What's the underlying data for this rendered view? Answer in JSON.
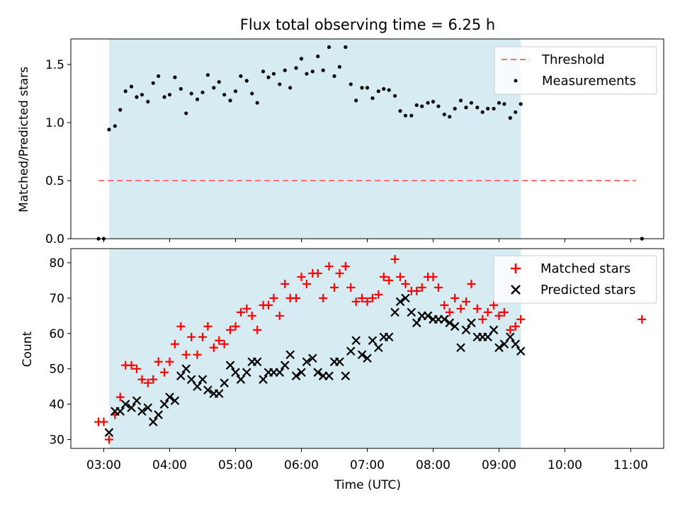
{
  "title": "Flux total observing time = 6.25 h",
  "xlabel": "Time (UTC)",
  "colors": {
    "shade": "#add8e6",
    "threshold": "#ff6f6f",
    "measurements": "#000000",
    "matched": "#ff0000",
    "predicted": "#000000"
  },
  "chart_data": [
    {
      "type": "scatter",
      "ylabel": "Matched/Predicted stars",
      "x_axis": "time (hours, UTC)",
      "xlim": [
        2.5,
        11.5
      ],
      "ylim": [
        0,
        1.72
      ],
      "yticks": [
        0.0,
        0.5,
        1.0,
        1.5
      ],
      "yticklabels": [
        "0.0",
        "0.5",
        "1.0",
        "1.5"
      ],
      "shaded_span": [
        3.083,
        9.333
      ],
      "threshold": {
        "name": "Threshold",
        "y": 0.5,
        "x_range": [
          2.92,
          11.08
        ],
        "style": "dashed"
      },
      "legend": [
        "Threshold",
        "Measurements"
      ],
      "legend_position": "upper right",
      "series": [
        {
          "name": "Measurements",
          "x": [
            2.92,
            3.0,
            3.08,
            3.17,
            3.25,
            3.33,
            3.42,
            3.5,
            3.58,
            3.67,
            3.75,
            3.83,
            3.92,
            4.0,
            4.08,
            4.17,
            4.25,
            4.33,
            4.42,
            4.5,
            4.58,
            4.67,
            4.75,
            4.83,
            4.92,
            5.0,
            5.08,
            5.17,
            5.25,
            5.33,
            5.42,
            5.5,
            5.58,
            5.67,
            5.75,
            5.83,
            5.92,
            6.0,
            6.08,
            6.17,
            6.25,
            6.33,
            6.42,
            6.5,
            6.58,
            6.67,
            6.75,
            6.83,
            6.92,
            7.0,
            7.08,
            7.17,
            7.25,
            7.33,
            7.42,
            7.5,
            7.58,
            7.67,
            7.75,
            7.83,
            7.92,
            8.0,
            8.08,
            8.17,
            8.25,
            8.33,
            8.42,
            8.5,
            8.58,
            8.67,
            8.75,
            8.83,
            8.92,
            9.0,
            9.08,
            9.17,
            9.25,
            9.33,
            11.17
          ],
          "y": [
            0.0,
            0.0,
            0.94,
            0.97,
            1.11,
            1.27,
            1.31,
            1.22,
            1.24,
            1.18,
            1.34,
            1.4,
            1.22,
            1.24,
            1.39,
            1.29,
            1.08,
            1.25,
            1.2,
            1.26,
            1.41,
            1.3,
            1.35,
            1.24,
            1.19,
            1.27,
            1.4,
            1.36,
            1.25,
            1.17,
            1.44,
            1.39,
            1.42,
            1.33,
            1.45,
            1.3,
            1.47,
            1.55,
            1.42,
            1.44,
            1.57,
            1.45,
            1.65,
            1.4,
            1.48,
            1.65,
            1.33,
            1.19,
            1.3,
            1.3,
            1.21,
            1.27,
            1.29,
            1.28,
            1.23,
            1.1,
            1.06,
            1.06,
            1.15,
            1.14,
            1.17,
            1.18,
            1.14,
            1.07,
            1.05,
            1.12,
            1.19,
            1.13,
            1.17,
            1.13,
            1.09,
            1.12,
            1.12,
            1.17,
            1.16,
            1.04,
            1.09,
            1.16,
            0.0
          ]
        }
      ]
    },
    {
      "type": "scatter",
      "ylabel": "Count",
      "xlabel": "Time (UTC)",
      "xlim": [
        2.5,
        11.5
      ],
      "ylim": [
        27.5,
        84
      ],
      "yticks": [
        30,
        40,
        50,
        60,
        70,
        80
      ],
      "yticklabels": [
        "30",
        "40",
        "50",
        "60",
        "70",
        "80"
      ],
      "xticks": [
        3,
        4,
        5,
        6,
        7,
        8,
        9,
        10,
        11
      ],
      "xticklabels": [
        "03:00",
        "04:00",
        "05:00",
        "06:00",
        "07:00",
        "08:00",
        "09:00",
        "10:00",
        "11:00"
      ],
      "shaded_span": [
        3.083,
        9.333
      ],
      "legend": [
        "Matched stars",
        "Predicted stars"
      ],
      "legend_position": "upper right",
      "series": [
        {
          "name": "Matched stars",
          "marker": "plus",
          "x": [
            2.92,
            3.0,
            3.08,
            3.17,
            3.25,
            3.33,
            3.42,
            3.5,
            3.58,
            3.67,
            3.75,
            3.83,
            3.92,
            4.0,
            4.08,
            4.17,
            4.25,
            4.33,
            4.42,
            4.5,
            4.58,
            4.67,
            4.75,
            4.83,
            4.92,
            5.0,
            5.08,
            5.17,
            5.25,
            5.33,
            5.42,
            5.5,
            5.58,
            5.67,
            5.75,
            5.83,
            5.92,
            6.0,
            6.08,
            6.17,
            6.25,
            6.33,
            6.42,
            6.5,
            6.58,
            6.67,
            6.75,
            6.83,
            6.92,
            7.0,
            7.08,
            7.17,
            7.25,
            7.33,
            7.42,
            7.5,
            7.58,
            7.67,
            7.75,
            7.83,
            7.92,
            8.0,
            8.08,
            8.17,
            8.25,
            8.33,
            8.42,
            8.5,
            8.58,
            8.67,
            8.75,
            8.83,
            8.92,
            9.0,
            9.08,
            9.17,
            9.25,
            9.33,
            11.17
          ],
          "y": [
            35,
            35,
            30,
            37,
            42,
            51,
            51,
            50,
            47,
            46,
            47,
            52,
            49,
            52,
            57,
            62,
            54,
            59,
            54,
            59,
            62,
            56,
            58,
            57,
            61,
            62,
            66,
            67,
            65,
            61,
            68,
            68,
            70,
            65,
            74,
            70,
            70,
            76,
            74,
            77,
            77,
            70,
            79,
            73,
            77,
            79,
            73,
            69,
            70,
            69,
            70,
            71,
            76,
            75,
            81,
            76,
            74,
            72,
            72,
            73,
            76,
            76,
            73,
            68,
            66,
            70,
            67,
            69,
            74,
            67,
            64,
            66,
            68,
            65,
            66,
            61,
            62,
            64,
            64
          ]
        },
        {
          "name": "Predicted stars",
          "marker": "x",
          "x": [
            3.08,
            3.17,
            3.25,
            3.33,
            3.42,
            3.5,
            3.58,
            3.67,
            3.75,
            3.83,
            3.92,
            4.0,
            4.08,
            4.17,
            4.25,
            4.33,
            4.42,
            4.5,
            4.58,
            4.67,
            4.75,
            4.83,
            4.92,
            5.0,
            5.08,
            5.17,
            5.25,
            5.33,
            5.42,
            5.5,
            5.58,
            5.67,
            5.75,
            5.83,
            5.92,
            6.0,
            6.08,
            6.17,
            6.25,
            6.33,
            6.42,
            6.5,
            6.58,
            6.67,
            6.75,
            6.83,
            6.92,
            7.0,
            7.08,
            7.17,
            7.25,
            7.33,
            7.42,
            7.5,
            7.58,
            7.67,
            7.75,
            7.83,
            7.92,
            8.0,
            8.08,
            8.17,
            8.25,
            8.33,
            8.42,
            8.5,
            8.58,
            8.67,
            8.75,
            8.83,
            8.92,
            9.0,
            9.08,
            9.17,
            9.25,
            9.33
          ],
          "y": [
            32,
            38,
            38,
            40,
            39,
            41,
            38,
            39,
            35,
            37,
            40,
            42,
            41,
            48,
            50,
            47,
            45,
            47,
            44,
            43,
            43,
            46,
            51,
            49,
            47,
            49,
            52,
            52,
            47,
            49,
            49,
            49,
            51,
            54,
            48,
            49,
            52,
            53,
            49,
            48,
            48,
            52,
            52,
            48,
            55,
            58,
            54,
            53,
            58,
            56,
            59,
            59,
            66,
            69,
            70,
            66,
            63,
            65,
            65,
            64,
            64,
            64,
            63,
            62,
            56,
            61,
            63,
            59,
            59,
            59,
            61,
            56,
            57,
            59,
            57,
            55
          ]
        }
      ]
    }
  ]
}
